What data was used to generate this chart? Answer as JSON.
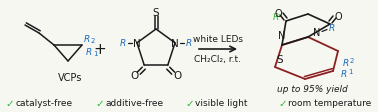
{
  "background_color": "#f7f7f2",
  "green_color": "#2db82d",
  "blue_color": "#1a6bbf",
  "dark_red": "#8b2020",
  "black": "#1a1a1a",
  "check_items": [
    "catalyst-free",
    "additive-free",
    "visible light",
    "room temperature"
  ],
  "arrow_label_top": "white LEDs",
  "arrow_label_bot": "CH₂Cl₂, r.t.",
  "yield_text": "up to 95% yield",
  "vcps_label": "VCPs",
  "plus_sign": "+",
  "figsize": [
    3.78,
    1.13
  ],
  "dpi": 100
}
